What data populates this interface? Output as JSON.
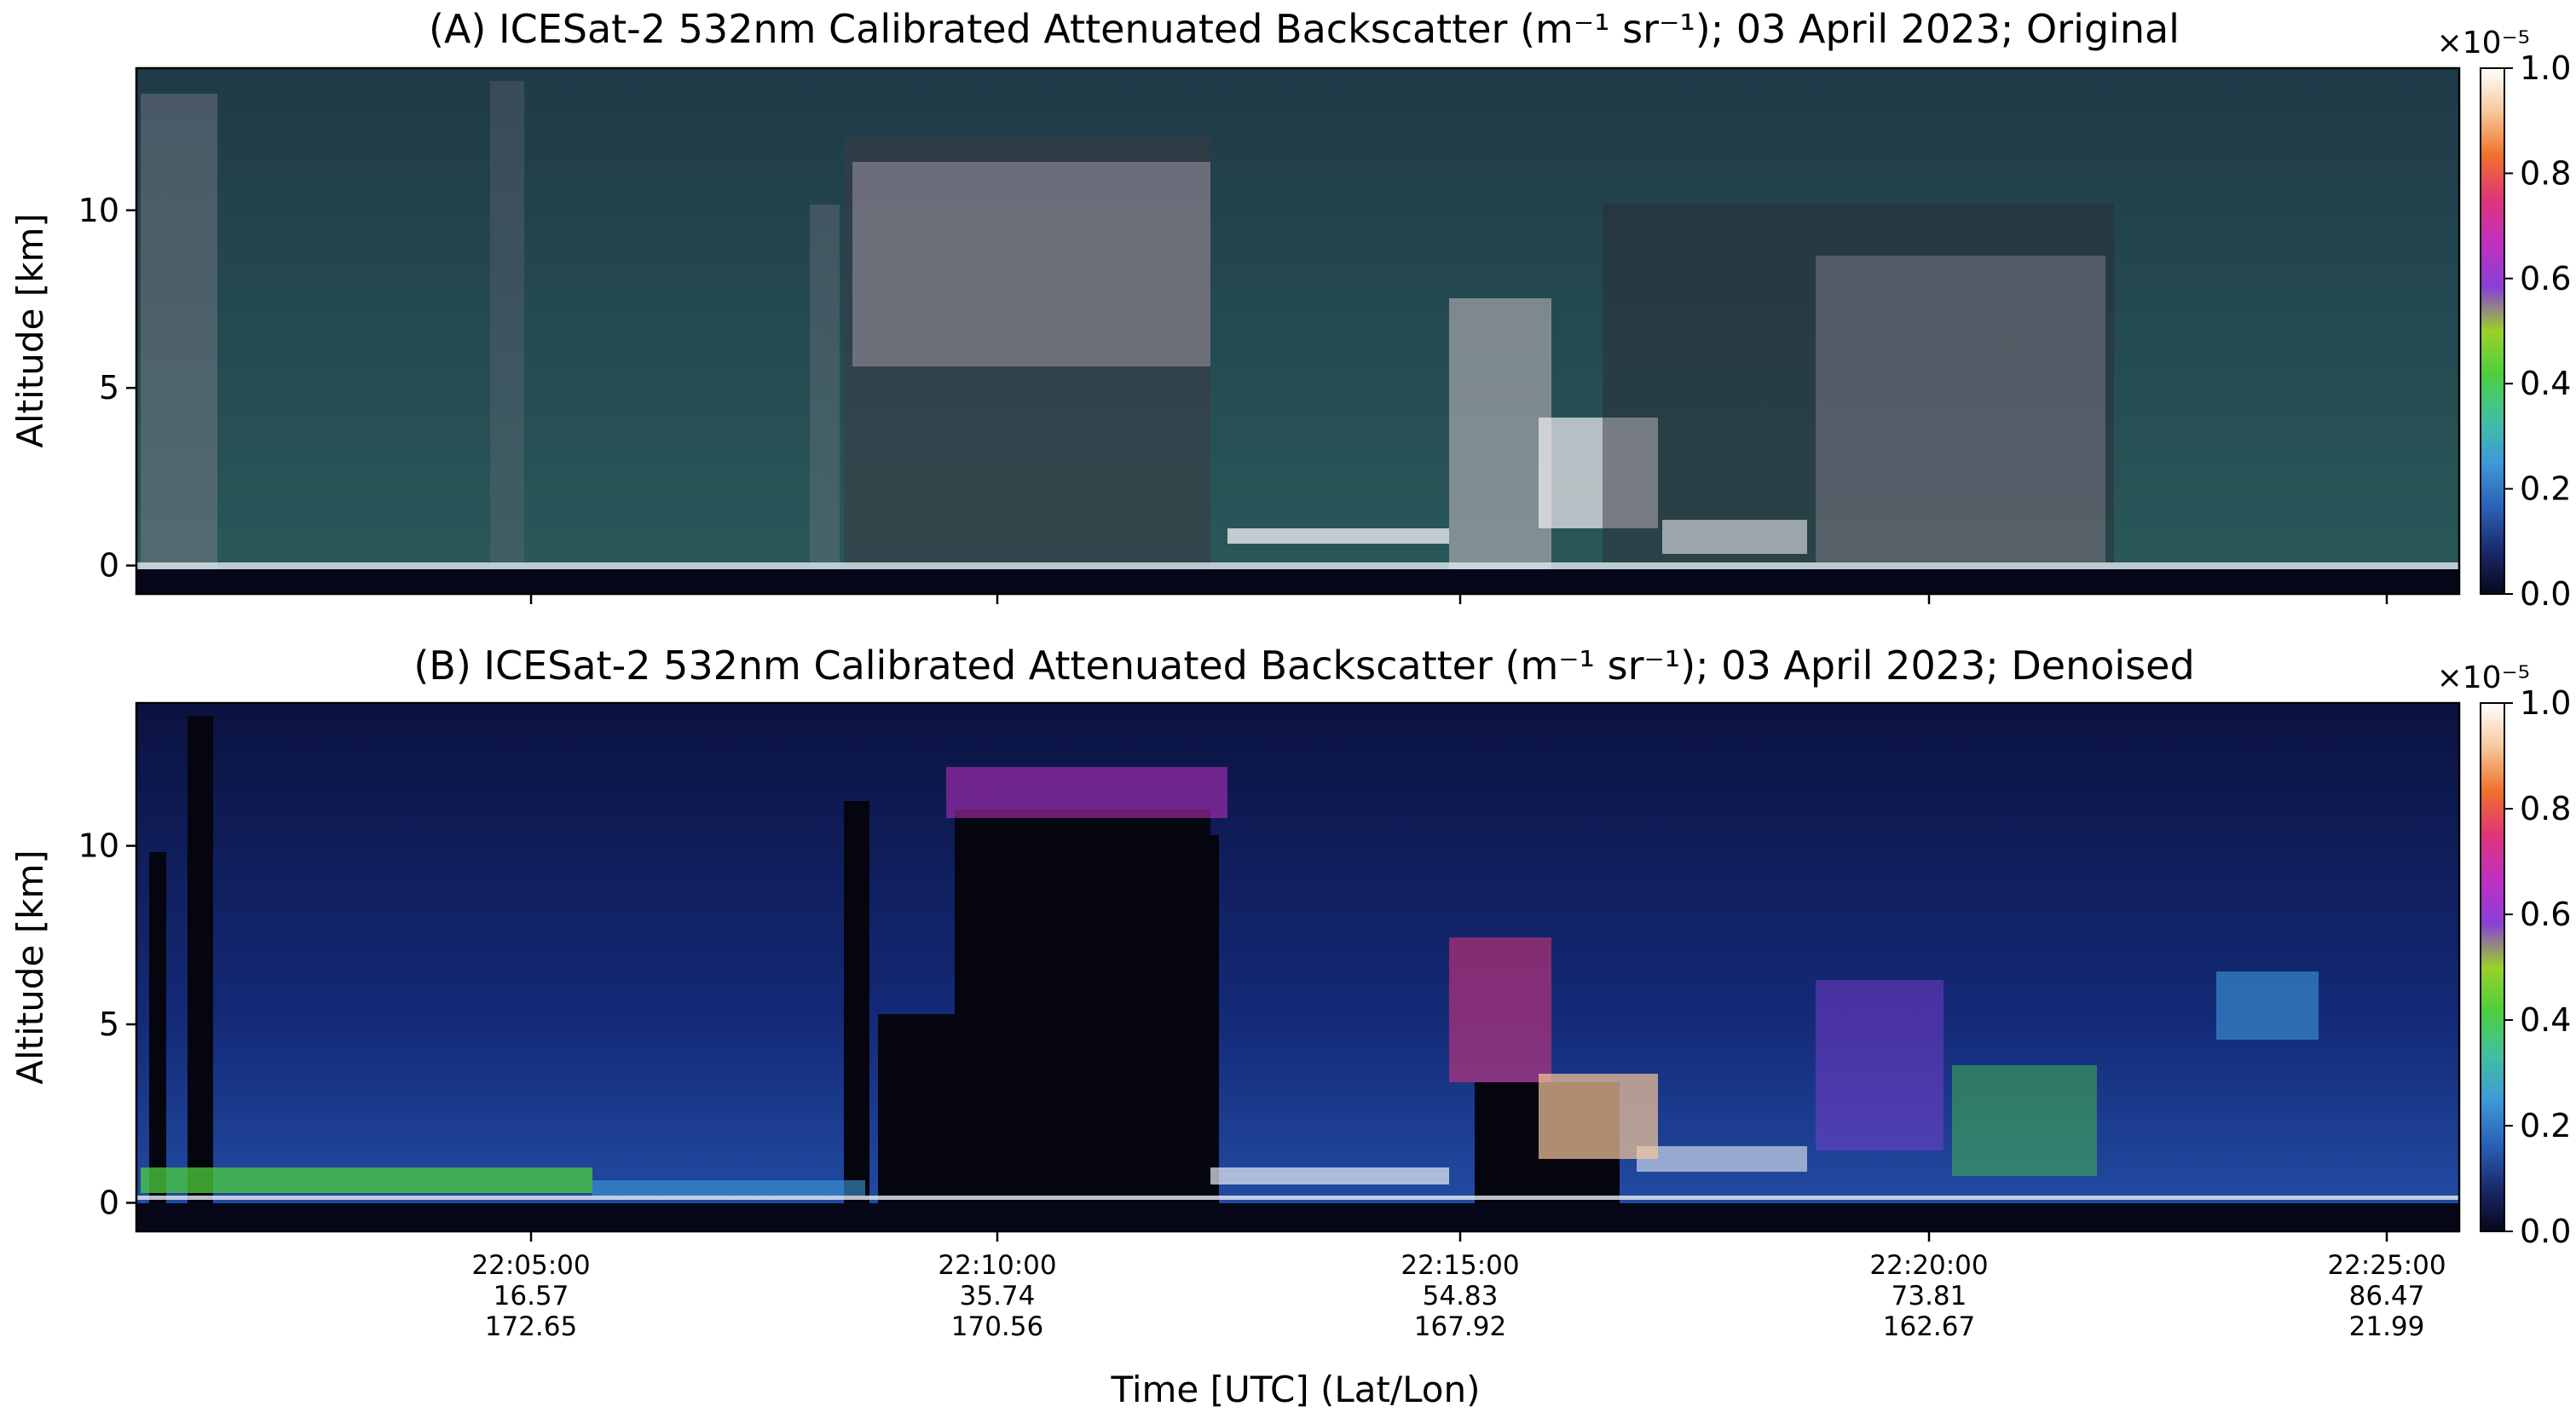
{
  "figure": {
    "xlabel": "Time [UTC] (Lat/Lon)"
  },
  "chart_data": [
    {
      "type": "heatmap",
      "title": "(A) ICESat-2 532nm Calibrated Attenuated Backscatter (m⁻¹ sr⁻¹); 03 April 2023; Original",
      "ylabel": "Altitude [km]",
      "ylim": [
        -0.8,
        14.0
      ],
      "yticks": [
        0,
        5,
        10
      ],
      "show_xticklabels": false,
      "colorbar": {
        "range": [
          0.0,
          1.0
        ],
        "ticks": [
          "0.0",
          "0.2",
          "0.4",
          "0.6",
          "0.8",
          "1.0"
        ],
        "multiplier": "×10⁻⁵",
        "colormap": [
          "#07071a",
          "#1a2a6e",
          "#2a63b8",
          "#3e9ad8",
          "#41c0a0",
          "#4ccf3e",
          "#9ad12a",
          "#8a3fd8",
          "#c030c0",
          "#e0347a",
          "#f0702a",
          "#f6c89a",
          "#ffffff"
        ]
      },
      "x_ticks": [
        {
          "time": "22:05:00",
          "lat": "16.57",
          "lon": "172.65"
        },
        {
          "time": "22:10:00",
          "lat": "35.74",
          "lon": "170.56"
        },
        {
          "time": "22:15:00",
          "lat": "54.83",
          "lon": "167.92"
        },
        {
          "time": "22:20:00",
          "lat": "73.81",
          "lon": "162.67"
        },
        {
          "time": "22:25:00",
          "lat": "86.47",
          "lon": "21.99"
        }
      ]
    },
    {
      "type": "heatmap",
      "title": "(B) ICESat-2 532nm Calibrated Attenuated Backscatter (m⁻¹ sr⁻¹); 03 April 2023; Denoised",
      "ylabel": "Altitude [km]",
      "ylim": [
        -0.8,
        14.0
      ],
      "yticks": [
        0,
        5,
        10
      ],
      "show_xticklabels": true,
      "colorbar": {
        "range": [
          0.0,
          1.0
        ],
        "ticks": [
          "0.0",
          "0.2",
          "0.4",
          "0.6",
          "0.8",
          "1.0"
        ],
        "multiplier": "×10⁻⁵",
        "colormap": [
          "#07071a",
          "#1a2a6e",
          "#2a63b8",
          "#3e9ad8",
          "#41c0a0",
          "#4ccf3e",
          "#9ad12a",
          "#8a3fd8",
          "#c030c0",
          "#e0347a",
          "#f0702a",
          "#f6c89a",
          "#ffffff"
        ]
      },
      "x_ticks": [
        {
          "time": "22:05:00",
          "lat": "16.57",
          "lon": "172.65"
        },
        {
          "time": "22:10:00",
          "lat": "35.74",
          "lon": "170.56"
        },
        {
          "time": "22:15:00",
          "lat": "54.83",
          "lon": "167.92"
        },
        {
          "time": "22:20:00",
          "lat": "73.81",
          "lon": "162.67"
        },
        {
          "time": "22:25:00",
          "lat": "86.47",
          "lon": "21.99"
        }
      ]
    }
  ]
}
